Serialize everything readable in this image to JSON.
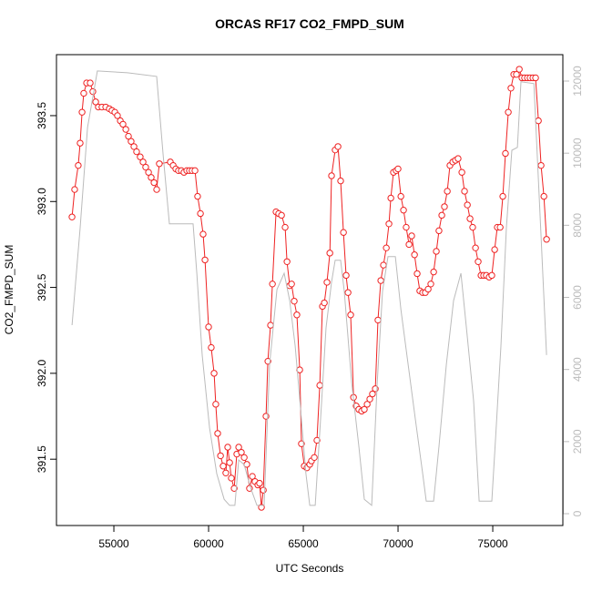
{
  "chart_data": {
    "type": "line",
    "title": "ORCAS RF17 CO2_FMPD_SUM",
    "x_label": "UTC Seconds",
    "y_label": "CO2_FMPD_SUM",
    "xlim": [
      51970,
      78700
    ],
    "ylim": [
      391.114,
      393.855
    ],
    "y2lim": [
      -328,
      12733
    ],
    "xticks": [
      55000,
      60000,
      65000,
      70000,
      75000
    ],
    "yticks": [
      {
        "value": 391.5,
        "label": "391.5"
      },
      {
        "value": 392,
        "label": "392.0"
      },
      {
        "value": 392.5,
        "label": "392.5"
      },
      {
        "value": 393,
        "label": "393.0"
      },
      {
        "value": 393.5,
        "label": "393.5"
      }
    ],
    "y2ticks": [
      0,
      2000,
      4000,
      6000,
      8000,
      10000,
      12000
    ],
    "y2_color": "#bbbbbb",
    "series": [
      {
        "color": "#ee2222",
        "marker": "circle",
        "x": [
          52790,
          52930,
          53120,
          53220,
          53320,
          53410,
          53560,
          53750,
          53890,
          54040,
          54180,
          54370,
          54570,
          54760,
          54900,
          55050,
          55190,
          55340,
          55480,
          55630,
          55770,
          55910,
          56060,
          56200,
          56390,
          56540,
          56680,
          56830,
          56970,
          57120,
          57260,
          57400,
          57980,
          58130,
          58270,
          58410,
          58560,
          58700,
          58850,
          58990,
          59130,
          59280,
          59420,
          59570,
          59710,
          59810,
          60000,
          60140,
          60290,
          60380,
          60480,
          60630,
          60770,
          60910,
          61010,
          61110,
          61200,
          61350,
          61490,
          61590,
          61730,
          61880,
          62020,
          62160,
          62310,
          62450,
          62600,
          62690,
          62790,
          62890,
          63030,
          63130,
          63270,
          63370,
          63560,
          63700,
          63850,
          64040,
          64140,
          64280,
          64380,
          64520,
          64660,
          64810,
          64900,
          65050,
          65190,
          65340,
          65430,
          65580,
          65720,
          65870,
          66010,
          66110,
          66250,
          66400,
          66490,
          66680,
          66830,
          66970,
          67120,
          67260,
          67360,
          67500,
          67650,
          67790,
          67930,
          68080,
          68220,
          68370,
          68510,
          68650,
          68800,
          68940,
          69090,
          69230,
          69380,
          69520,
          69620,
          69760,
          69900,
          70000,
          70150,
          70290,
          70430,
          70580,
          70720,
          70870,
          71010,
          71150,
          71300,
          71440,
          71590,
          71730,
          71880,
          72020,
          72160,
          72310,
          72450,
          72600,
          72740,
          72890,
          73030,
          73170,
          73370,
          73510,
          73660,
          73800,
          73940,
          74090,
          74230,
          74380,
          74520,
          74660,
          74810,
          74950,
          75100,
          75240,
          75390,
          75530,
          75670,
          75820,
          75960,
          76110,
          76250,
          76400,
          76540,
          76680,
          76830,
          76970,
          77120,
          77260,
          77410,
          77550,
          77700,
          77840
        ],
        "values": [
          392.91,
          393.07,
          393.21,
          393.34,
          393.52,
          393.63,
          393.69,
          393.69,
          393.64,
          393.58,
          393.55,
          393.55,
          393.55,
          393.54,
          393.53,
          393.52,
          393.5,
          393.47,
          393.45,
          393.42,
          393.38,
          393.35,
          393.32,
          393.29,
          393.26,
          393.23,
          393.2,
          393.17,
          393.14,
          393.11,
          393.07,
          393.22,
          393.23,
          393.21,
          393.19,
          393.18,
          393.18,
          393.17,
          393.18,
          393.18,
          393.18,
          393.18,
          393.03,
          392.93,
          392.81,
          392.66,
          392.27,
          392.15,
          392.0,
          391.82,
          391.65,
          391.52,
          391.46,
          391.42,
          391.57,
          391.48,
          391.39,
          391.33,
          391.53,
          391.57,
          391.54,
          391.51,
          391.47,
          391.33,
          391.4,
          391.37,
          391.35,
          391.36,
          391.22,
          391.32,
          391.75,
          392.07,
          392.28,
          392.52,
          392.94,
          392.93,
          392.92,
          392.85,
          392.65,
          392.51,
          392.52,
          392.42,
          392.34,
          392.02,
          391.59,
          391.46,
          391.45,
          391.47,
          391.49,
          391.51,
          391.61,
          391.93,
          392.39,
          392.41,
          392.53,
          392.7,
          393.15,
          393.3,
          393.32,
          393.12,
          392.82,
          392.57,
          392.47,
          392.34,
          391.86,
          391.81,
          391.79,
          391.78,
          391.79,
          391.82,
          391.85,
          391.88,
          391.91,
          392.31,
          392.54,
          392.63,
          392.73,
          392.87,
          393.02,
          393.17,
          393.18,
          393.19,
          393.03,
          392.95,
          392.85,
          392.75,
          392.8,
          392.69,
          392.58,
          392.48,
          392.47,
          392.47,
          392.49,
          392.52,
          392.59,
          392.71,
          392.83,
          392.92,
          392.97,
          393.06,
          393.21,
          393.23,
          393.24,
          393.25,
          393.17,
          393.06,
          392.98,
          392.9,
          392.85,
          392.73,
          392.65,
          392.57,
          392.57,
          392.57,
          392.56,
          392.57,
          392.72,
          392.85,
          392.85,
          393.03,
          393.28,
          393.52,
          393.66,
          393.74,
          393.74,
          393.77,
          393.72,
          393.72,
          393.72,
          393.72,
          393.72,
          393.72,
          393.47,
          393.21,
          393.03,
          392.78
        ]
      },
      {
        "color": "#bbbbbb",
        "axis": "y2",
        "x": [
          52790,
          53220,
          53610,
          54130,
          55720,
          57260,
          57600,
          57930,
          59180,
          59380,
          59660,
          60050,
          60430,
          60820,
          61110,
          61390,
          61590,
          61880,
          62210,
          62550,
          62930,
          63220,
          63610,
          63990,
          64280,
          64570,
          64860,
          65140,
          65340,
          65630,
          65910,
          66200,
          66490,
          66680,
          66970,
          67160,
          67550,
          67930,
          68220,
          68610,
          68900,
          69180,
          69470,
          69860,
          70150,
          70530,
          70910,
          71300,
          71490,
          71880,
          72160,
          72550,
          72930,
          73320,
          73610,
          73990,
          74280,
          74950,
          75150,
          75430,
          75720,
          76010,
          76300,
          76490,
          77170,
          77550,
          77840
        ],
        "values": [
          5230,
          7930,
          10710,
          12280,
          12230,
          12130,
          9960,
          8040,
          8040,
          6670,
          4400,
          2380,
          1110,
          400,
          230,
          230,
          1490,
          1360,
          730,
          230,
          230,
          4140,
          6220,
          6670,
          5910,
          4650,
          2880,
          1110,
          230,
          230,
          2630,
          5160,
          6420,
          7030,
          7030,
          6170,
          3640,
          1870,
          400,
          230,
          3640,
          6170,
          7130,
          7130,
          5660,
          4140,
          2630,
          1110,
          350,
          350,
          1870,
          4140,
          5910,
          6670,
          5160,
          3130,
          350,
          350,
          2120,
          4650,
          7930,
          10080,
          10160,
          11980,
          11930,
          7680,
          4400
        ]
      }
    ]
  }
}
